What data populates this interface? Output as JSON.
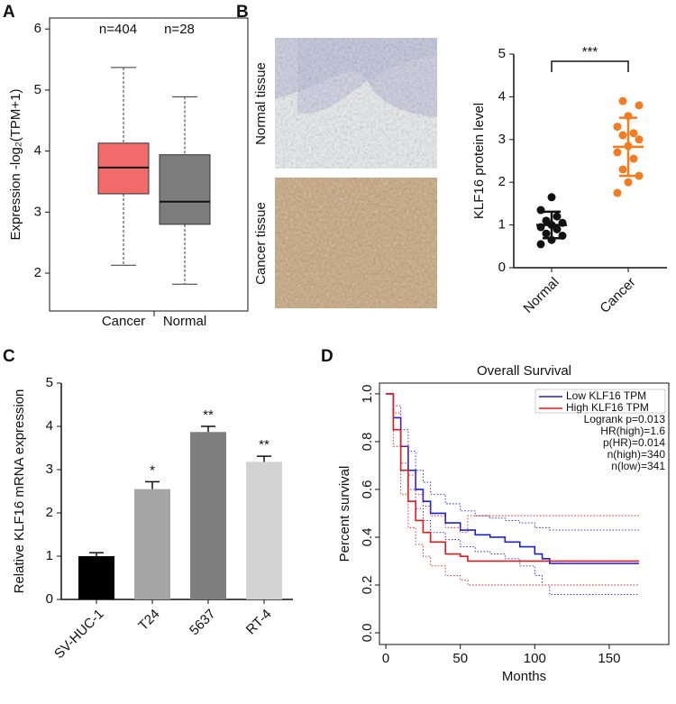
{
  "chart_data": [
    {
      "type": "box",
      "panel": "A",
      "ylabel": "Expression -log₂(TPM+1)",
      "categories": [
        "Cancer",
        "Normal"
      ],
      "count_labels": [
        "n=404",
        "n=28"
      ],
      "min": [
        2.13,
        1.82
      ],
      "q1": [
        3.3,
        2.8
      ],
      "median": [
        3.73,
        3.17
      ],
      "q3": [
        4.13,
        3.94
      ],
      "max": [
        5.37,
        4.89
      ],
      "colors": [
        "#f26b6b",
        "#7d7d7d"
      ],
      "ylim": [
        1.38,
        6.18
      ],
      "yticks": [
        2,
        3,
        4,
        5,
        6
      ]
    },
    {
      "type": "image",
      "panel": "B",
      "labels": [
        "Normal tissue",
        "Cancer tissue"
      ]
    },
    {
      "type": "dot",
      "ylabel": "KLF16 protein level",
      "categories": [
        "Normal",
        "Cancer"
      ],
      "points": [
        [
          0.55,
          0.65,
          0.75,
          0.8,
          0.9,
          0.95,
          1.0,
          1.05,
          1.1,
          1.2,
          1.35,
          1.65
        ],
        [
          1.75,
          2.0,
          2.15,
          2.3,
          2.55,
          2.7,
          2.85,
          3.0,
          3.1,
          3.15,
          3.3,
          3.55,
          3.8,
          3.9
        ]
      ],
      "mean": [
        1.0,
        2.83
      ],
      "sd": [
        0.31,
        0.68
      ],
      "colors": [
        "#111111",
        "#f47b20"
      ],
      "significance": "***",
      "ylim": [
        0,
        5
      ],
      "yticks": [
        0,
        1,
        2,
        3,
        4,
        5
      ]
    },
    {
      "type": "bar",
      "panel": "C",
      "ylabel": "Relative KLF16 mRNA expression",
      "categories": [
        "SV-HUC-1",
        "T24",
        "5637",
        "RT-4"
      ],
      "values": [
        1.0,
        2.55,
        3.87,
        3.18
      ],
      "errors": [
        0.08,
        0.17,
        0.13,
        0.13
      ],
      "significance": [
        null,
        "*",
        "**",
        "**"
      ],
      "colors": [
        "#000000",
        "#a6a6a6",
        "#7f7f7f",
        "#d3d3d3"
      ],
      "ylim": [
        0,
        5
      ],
      "yticks": [
        0,
        1,
        2,
        3,
        4,
        5
      ]
    },
    {
      "type": "survival",
      "panel": "D",
      "title": "Overall Survival",
      "xlabel": "Months",
      "ylabel": "Percent survival",
      "series": [
        {
          "name": "Low KLF16 TPM",
          "color": "#1f1fd6",
          "x": [
            0,
            5,
            10,
            15,
            20,
            25,
            30,
            40,
            50,
            60,
            70,
            80,
            90,
            100,
            105,
            110,
            170
          ],
          "values": [
            1.0,
            0.9,
            0.78,
            0.68,
            0.6,
            0.55,
            0.5,
            0.46,
            0.43,
            0.41,
            0.4,
            0.38,
            0.36,
            0.33,
            0.31,
            0.29,
            0.29
          ],
          "upper": [
            1.0,
            0.95,
            0.85,
            0.76,
            0.68,
            0.63,
            0.58,
            0.54,
            0.51,
            0.49,
            0.48,
            0.47,
            0.46,
            0.44,
            0.44,
            0.43,
            0.43
          ],
          "lower": [
            1.0,
            0.85,
            0.71,
            0.6,
            0.52,
            0.47,
            0.42,
            0.39,
            0.36,
            0.34,
            0.33,
            0.31,
            0.28,
            0.24,
            0.2,
            0.16,
            0.16
          ]
        },
        {
          "name": "High KLF16 TPM",
          "color": "#e41a1a",
          "x": [
            0,
            5,
            10,
            15,
            20,
            25,
            30,
            40,
            50,
            55,
            60,
            100,
            170
          ],
          "values": [
            1.0,
            0.85,
            0.68,
            0.55,
            0.47,
            0.42,
            0.38,
            0.33,
            0.32,
            0.3,
            0.3,
            0.3,
            0.3
          ],
          "upper": [
            1.0,
            0.92,
            0.78,
            0.66,
            0.58,
            0.53,
            0.49,
            0.44,
            0.42,
            0.49,
            0.49,
            0.49,
            0.49
          ],
          "lower": [
            1.0,
            0.78,
            0.58,
            0.44,
            0.37,
            0.32,
            0.28,
            0.24,
            0.22,
            0.2,
            0.2,
            0.2,
            0.2
          ]
        }
      ],
      "annotations": [
        "Logrank p=0.013",
        "HR(high)=1.6",
        "p(HR)=0.014",
        "n(high)=340",
        "n(low)=341"
      ],
      "xlim": [
        -4.3,
        190
      ],
      "xticks": [
        0,
        50,
        100,
        150
      ],
      "ylim": [
        -0.049,
        1.045
      ],
      "yticks": [
        {
          "value": 0,
          "label": "0.0"
        },
        {
          "value": 0.2,
          "label": "0.2"
        },
        {
          "value": 0.4,
          "label": "0.4"
        },
        {
          "value": 0.6,
          "label": "0.6"
        },
        {
          "value": 0.8,
          "label": "0.8"
        },
        {
          "value": 1,
          "label": "1.0"
        }
      ]
    }
  ]
}
